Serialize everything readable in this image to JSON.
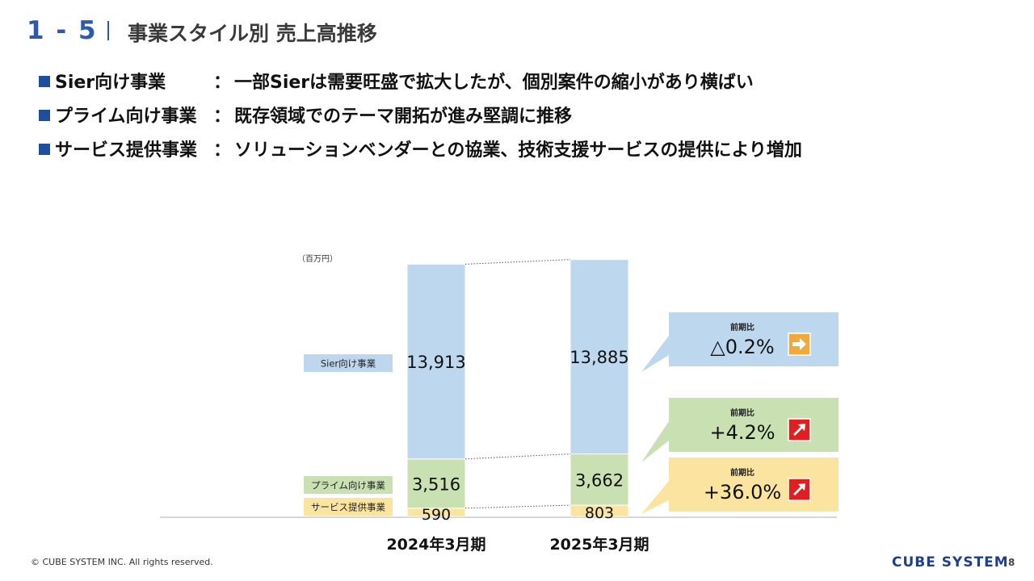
{
  "header": {
    "section_number": "1 - 5",
    "title": "事業スタイル別 売上高推移"
  },
  "bullets": [
    {
      "name": "Sier向け事業",
      "colon": "：",
      "text": "一部Sierは需要旺盛で拡大したが、個別案件の縮小があり横ばい"
    },
    {
      "name": "プライム向け事業",
      "colon": "：",
      "text": "既存領域でのテーマ開拓が進み堅調に推移"
    },
    {
      "name": "サービス提供事業",
      "colon": "：",
      "text": "ソリューションベンダーとの協業、技術支援サービスの提供により増加"
    }
  ],
  "chart_data": {
    "type": "bar",
    "stacked": true,
    "unit_label": "（百万円）",
    "categories": [
      "2024年3月期",
      "2025年3月期"
    ],
    "series": [
      {
        "name": "サービス提供事業",
        "values": [
          590,
          803
        ],
        "labels": [
          "590",
          "803"
        ],
        "color": "#fbe3a0"
      },
      {
        "name": "プライム向け事業",
        "values": [
          3516,
          3662
        ],
        "labels": [
          "3,516",
          "3,662"
        ],
        "color": "#c8e0b2"
      },
      {
        "name": "Sier向け事業",
        "values": [
          13913,
          13885
        ],
        "labels": [
          "13,913",
          "13,885"
        ],
        "color": "#bdd7ee"
      }
    ],
    "callouts": [
      {
        "series": "Sier向け事業",
        "label": "前期比",
        "value": "△0.2%",
        "arrow": "right",
        "color": "#bdd7ee",
        "arrow_color": "#f0a93b"
      },
      {
        "series": "プライム向け事業",
        "label": "前期比",
        "value": "+4.2%",
        "arrow": "up-right",
        "color": "#c8e0b2",
        "arrow_color": "#e02020"
      },
      {
        "series": "サービス提供事業",
        "label": "前期比",
        "value": "+36.0%",
        "arrow": "up-right",
        "color": "#fbe3a0",
        "arrow_color": "#e02020"
      }
    ]
  },
  "footer": {
    "copyright": "© CUBE SYSTEM INC. All rights reserved.",
    "logo": "CUBE SYSTEM",
    "page": "8"
  }
}
